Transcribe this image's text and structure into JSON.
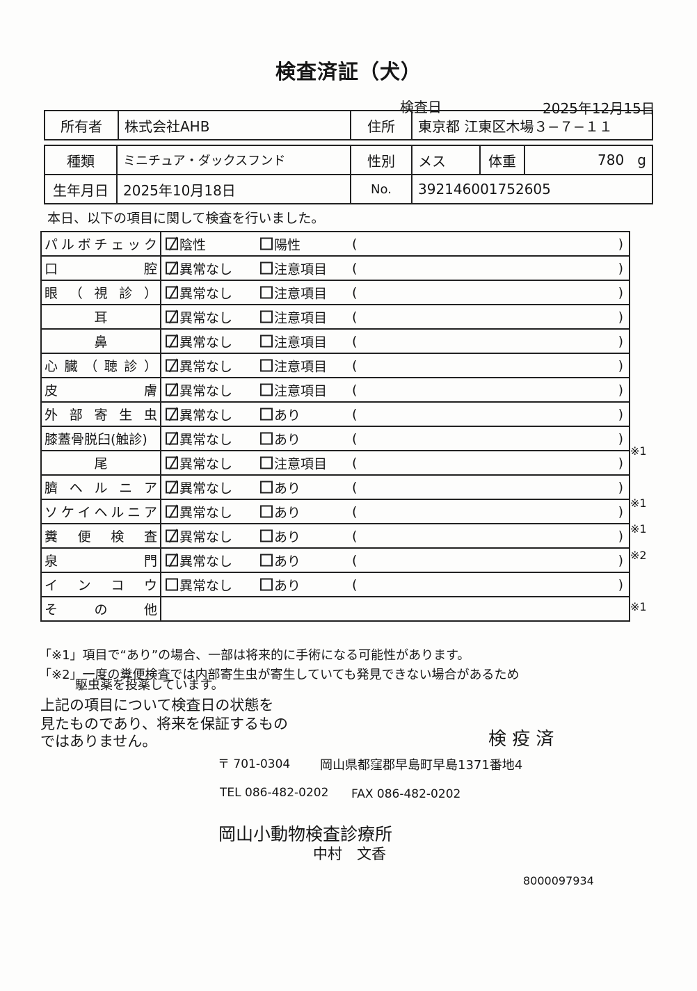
{
  "title": "検査済証（犬）",
  "inspection_date": {
    "label": "検査日",
    "value": "2025年12月15日"
  },
  "owner": {
    "label": "所有者",
    "value": "株式会社AHB"
  },
  "address": {
    "label": "住所",
    "value": "東京都 江東区木場３−７−１１"
  },
  "breed": {
    "label": "種類",
    "value": "ミニチュア・ダックスフンド"
  },
  "sex": {
    "label": "性別",
    "value": "メス"
  },
  "weight": {
    "label": "体重",
    "value": "780",
    "unit": "g"
  },
  "birthdate": {
    "label": "生年月日",
    "value": "2025年10月18日"
  },
  "number": {
    "label": "No.",
    "value": "392146001752605"
  },
  "intro": "本日、以下の項目に関して検査を行いました。",
  "paren_open": "(",
  "paren_close": ")",
  "rows": [
    {
      "item": [
        "パ",
        "ル",
        "ボ",
        "チ",
        "ェ",
        "ッ",
        "ク"
      ],
      "opt1": "陰性",
      "opt1_checked": true,
      "opt2": "陽性",
      "opt2_checked": false,
      "note": ""
    },
    {
      "item": [
        "口",
        "腔"
      ],
      "opt1": "異常なし",
      "opt1_checked": true,
      "opt2": "注意項目",
      "opt2_checked": false,
      "note": ""
    },
    {
      "item": [
        "眼",
        "（",
        "視",
        "診",
        "）"
      ],
      "opt1": "異常なし",
      "opt1_checked": true,
      "opt2": "注意項目",
      "opt2_checked": false,
      "note": ""
    },
    {
      "item": [
        "耳"
      ],
      "center": true,
      "opt1": "異常なし",
      "opt1_checked": true,
      "opt2": "注意項目",
      "opt2_checked": false,
      "note": ""
    },
    {
      "item": [
        "鼻"
      ],
      "center": true,
      "opt1": "異常なし",
      "opt1_checked": true,
      "opt2": "注意項目",
      "opt2_checked": false,
      "note": ""
    },
    {
      "item": [
        "心",
        "臓",
        "（",
        "聴",
        "診",
        "）"
      ],
      "opt1": "異常なし",
      "opt1_checked": true,
      "opt2": "注意項目",
      "opt2_checked": false,
      "note": ""
    },
    {
      "item": [
        "皮",
        "膚"
      ],
      "opt1": "異常なし",
      "opt1_checked": true,
      "opt2": "注意項目",
      "opt2_checked": false,
      "note": ""
    },
    {
      "item": [
        "外",
        "部",
        "寄",
        "生",
        "虫"
      ],
      "opt1": "異常なし",
      "opt1_checked": true,
      "opt2": "あり",
      "opt2_checked": false,
      "note": ""
    },
    {
      "item": [
        "膝蓋骨脱臼(触診)"
      ],
      "opt1": "異常なし",
      "opt1_checked": true,
      "opt2": "あり",
      "opt2_checked": false,
      "note": "※1"
    },
    {
      "item": [
        "尾"
      ],
      "center": true,
      "opt1": "異常なし",
      "opt1_checked": true,
      "opt2": "注意項目",
      "opt2_checked": false,
      "note": ""
    },
    {
      "item": [
        "臍",
        "ヘ",
        "ル",
        "ニ",
        "ア"
      ],
      "opt1": "異常なし",
      "opt1_checked": true,
      "opt2": "あり",
      "opt2_checked": false,
      "note": "※1"
    },
    {
      "item": [
        "ソ",
        "ケ",
        "イ",
        "ヘ",
        "ル",
        "ニ",
        "ア"
      ],
      "opt1": "異常なし",
      "opt1_checked": true,
      "opt2": "あり",
      "opt2_checked": false,
      "note": "※1"
    },
    {
      "item": [
        "糞",
        "便",
        "検",
        "査"
      ],
      "opt1": "異常なし",
      "opt1_checked": true,
      "opt2": "あり",
      "opt2_checked": false,
      "note": "※2"
    },
    {
      "item": [
        "泉",
        "門"
      ],
      "opt1": "異常なし",
      "opt1_checked": true,
      "opt2": "あり",
      "opt2_checked": false,
      "note": ""
    },
    {
      "item": [
        "イ",
        "ン",
        "コ",
        "ウ"
      ],
      "opt1": "異常なし",
      "opt1_checked": false,
      "opt2": "あり",
      "opt2_checked": false,
      "note": "※1"
    }
  ],
  "other": {
    "item": [
      "そ",
      "の",
      "他"
    ],
    "value": ""
  },
  "footnotes": [
    "「※1」項目で“あり”の場合、一部は将来的に手術になる可能性があります。",
    "「※2」一度の糞便検査では内部寄生虫が寄生していても発見できない場合があるため",
    "駆虫薬を投薬しています。"
  ],
  "disclaimer": [
    "上記の項目について検査日の状態を",
    "見たものであり、将来を保証するもの",
    "ではありません。"
  ],
  "stamp": "検 疫 済",
  "clinic": {
    "postal": "〒 701-0304",
    "address": "岡山県都窪郡早島町早島1371番地4",
    "tel": "TEL 086-482-0202",
    "fax": "FAX 086-482-0202",
    "name": "岡山小動物検査診療所",
    "person": "中村　文香"
  },
  "doc_code": "8000097934"
}
